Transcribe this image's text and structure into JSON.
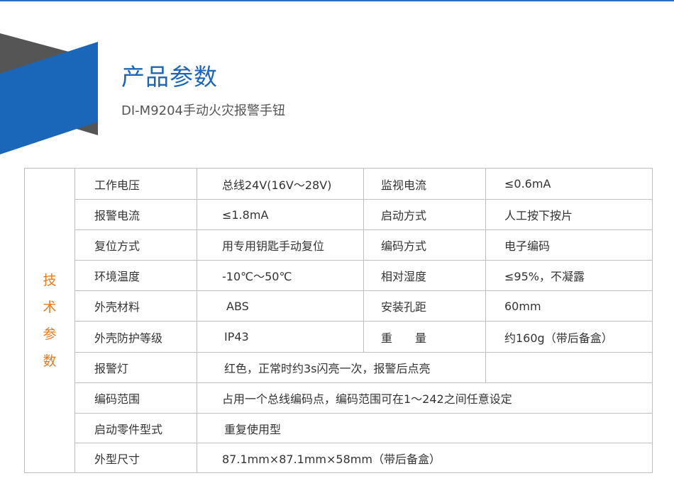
{
  "header": {
    "title": "产品参数",
    "subtitle": "DI-M9204手动火灾报警手钮",
    "accent_color": "#1a66b8",
    "side_label_color": "#e87a1f"
  },
  "table": {
    "side_label": [
      "技",
      "术",
      "参",
      "数"
    ],
    "rows": [
      {
        "k1": "工作电压",
        "v1": "总线24V(16V～28V)",
        "k2": "监视电流",
        "v2": "≤0.6mA"
      },
      {
        "k1": "报警电流",
        "v1": "≤1.8mA",
        "k2": "启动方式",
        "v2": "人工按下按片"
      },
      {
        "k1": "复位方式",
        "v1": "用专用钥匙手动复位",
        "k2": "编码方式",
        "v2": "电子编码"
      },
      {
        "k1": "环境温度",
        "v1": "-10℃～50℃",
        "k2": "相对湿度",
        "v2": "≤95%，不凝露"
      },
      {
        "k1": "外壳材料",
        "v1": "ABS",
        "k2": "安装孔距",
        "v2": "60mm"
      },
      {
        "k1": "外壳防护等级",
        "v1": "IP43",
        "k2": "重　　量",
        "v2": "约160g（带后备盒）"
      },
      {
        "k1": "报警灯",
        "v1": "红色，正常时约3s闪亮一次，报警后点亮"
      },
      {
        "k1": "编码范围",
        "v1": "占用一个总线编码点，编码范围可在1～242之间任意设定"
      },
      {
        "k1": "启动零件型式",
        "v1": "重复使用型"
      },
      {
        "k1": "外型尺寸",
        "v1": "87.1mm×87.1mm×58mm（带后备盒）"
      }
    ]
  }
}
